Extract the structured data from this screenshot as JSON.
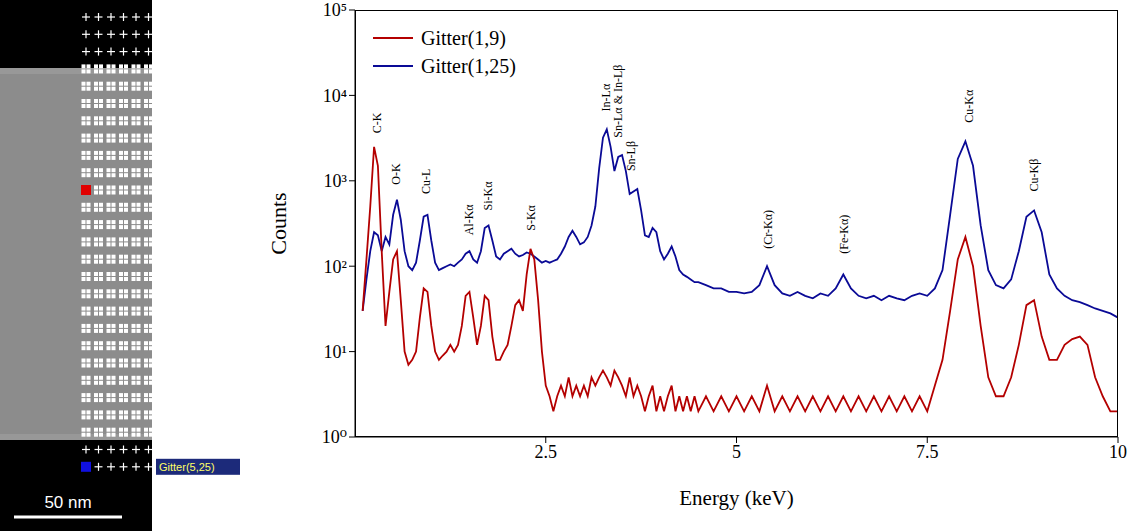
{
  "chart_data": {
    "type": "line",
    "xlabel": "Energy (keV)",
    "ylabel": "Counts",
    "log": "y",
    "grid": false,
    "legend": "upper left",
    "xlim": [
      0,
      10
    ],
    "xticks": [
      2.5,
      5,
      7.5,
      10
    ],
    "ylim": [
      1,
      100000
    ],
    "yticks": [
      {
        "value": 1,
        "label": "10⁰"
      },
      {
        "value": 10,
        "label": "10¹"
      },
      {
        "value": 100,
        "label": "10²"
      },
      {
        "value": 1000,
        "label": "10³"
      },
      {
        "value": 10000,
        "label": "10⁴"
      },
      {
        "value": 100000,
        "label": "10⁵"
      }
    ],
    "x": [
      0.1,
      0.15,
      0.2,
      0.25,
      0.3,
      0.35,
      0.4,
      0.45,
      0.5,
      0.55,
      0.6,
      0.65,
      0.7,
      0.75,
      0.8,
      0.85,
      0.9,
      0.95,
      1.0,
      1.05,
      1.1,
      1.15,
      1.2,
      1.25,
      1.3,
      1.35,
      1.4,
      1.45,
      1.5,
      1.55,
      1.6,
      1.65,
      1.7,
      1.75,
      1.8,
      1.85,
      1.9,
      1.95,
      2.0,
      2.05,
      2.1,
      2.15,
      2.2,
      2.25,
      2.3,
      2.35,
      2.4,
      2.45,
      2.5,
      2.55,
      2.6,
      2.65,
      2.7,
      2.75,
      2.8,
      2.85,
      2.9,
      2.95,
      3.0,
      3.05,
      3.1,
      3.15,
      3.2,
      3.25,
      3.3,
      3.35,
      3.4,
      3.45,
      3.5,
      3.55,
      3.6,
      3.65,
      3.7,
      3.75,
      3.8,
      3.85,
      3.9,
      3.95,
      4.0,
      4.05,
      4.1,
      4.15,
      4.2,
      4.25,
      4.3,
      4.35,
      4.4,
      4.45,
      4.5,
      4.6,
      4.7,
      4.8,
      4.9,
      5.0,
      5.1,
      5.2,
      5.3,
      5.4,
      5.5,
      5.6,
      5.7,
      5.8,
      5.9,
      6.0,
      6.1,
      6.2,
      6.3,
      6.4,
      6.5,
      6.6,
      6.7,
      6.8,
      6.9,
      7.0,
      7.1,
      7.2,
      7.3,
      7.4,
      7.5,
      7.6,
      7.7,
      7.8,
      7.9,
      8.0,
      8.1,
      8.2,
      8.3,
      8.4,
      8.5,
      8.6,
      8.7,
      8.8,
      8.9,
      9.0,
      9.1,
      9.2,
      9.3,
      9.4,
      9.5,
      9.6,
      9.7,
      9.8,
      9.9,
      10.0
    ],
    "series": [
      {
        "name": "Gitter(1,9)",
        "color": "#b40000",
        "values": [
          30,
          120,
          500,
          2500,
          1500,
          150,
          20,
          50,
          120,
          150,
          40,
          10,
          7,
          8,
          10,
          25,
          55,
          50,
          20,
          10,
          8,
          9,
          10,
          12,
          10,
          12,
          20,
          45,
          50,
          25,
          12,
          20,
          45,
          40,
          15,
          8,
          8,
          10,
          12,
          20,
          35,
          40,
          30,
          80,
          160,
          120,
          40,
          10,
          4,
          3,
          2,
          3,
          4,
          3,
          5,
          3,
          4,
          3,
          4,
          3,
          5,
          4,
          5,
          6,
          5,
          4,
          6,
          5,
          4,
          3,
          5,
          3,
          4,
          3,
          2,
          3,
          4,
          2,
          3,
          2,
          3,
          4,
          2,
          3,
          2,
          3,
          2,
          3,
          2,
          3,
          2,
          3,
          2,
          3,
          2,
          3,
          2,
          4,
          2,
          3,
          2,
          3,
          2,
          3,
          2,
          3,
          2,
          3,
          2,
          3,
          2,
          3,
          2,
          3,
          2,
          3,
          2,
          3,
          2,
          4,
          8,
          30,
          120,
          220,
          100,
          20,
          5,
          3,
          3,
          5,
          12,
          35,
          40,
          15,
          8,
          8,
          12,
          14,
          15,
          12,
          5,
          3,
          2,
          2
        ]
      },
      {
        "name": "Gitter(1,25)",
        "color": "#0a0a96",
        "values": [
          30,
          70,
          150,
          250,
          230,
          150,
          220,
          180,
          400,
          600,
          350,
          150,
          100,
          90,
          110,
          200,
          380,
          400,
          200,
          110,
          90,
          95,
          100,
          105,
          100,
          110,
          120,
          140,
          150,
          120,
          110,
          150,
          280,
          300,
          200,
          130,
          120,
          140,
          150,
          160,
          140,
          130,
          135,
          145,
          140,
          130,
          120,
          110,
          115,
          110,
          115,
          120,
          140,
          170,
          220,
          260,
          220,
          180,
          190,
          220,
          300,
          500,
          1400,
          3200,
          4000,
          2500,
          1300,
          1900,
          2000,
          1300,
          700,
          750,
          800,
          450,
          230,
          220,
          280,
          250,
          150,
          120,
          140,
          170,
          130,
          90,
          80,
          75,
          70,
          65,
          65,
          60,
          55,
          55,
          50,
          50,
          48,
          50,
          60,
          100,
          60,
          48,
          45,
          50,
          45,
          42,
          48,
          45,
          55,
          80,
          55,
          45,
          42,
          45,
          40,
          45,
          42,
          40,
          45,
          48,
          45,
          55,
          90,
          400,
          1800,
          2900,
          1500,
          300,
          90,
          60,
          55,
          70,
          150,
          380,
          450,
          250,
          80,
          55,
          45,
          40,
          38,
          35,
          32,
          30,
          28,
          25
        ]
      }
    ],
    "annotations": [
      {
        "text": "C-K",
        "x": 0.28,
        "y": 3600
      },
      {
        "text": "O-K",
        "x": 0.53,
        "y": 900
      },
      {
        "text": "Cu-L",
        "x": 0.93,
        "y": 700
      },
      {
        "text": "Al-Kα",
        "x": 1.49,
        "y": 230
      },
      {
        "text": "Si-Kα",
        "x": 1.74,
        "y": 450
      },
      {
        "text": "S-Kα",
        "x": 2.31,
        "y": 260
      },
      {
        "text": "In-Lα",
        "x": 3.29,
        "y": 6500
      },
      {
        "text": "Sn-Lα & In-Lβ",
        "x": 3.45,
        "y": 3200
      },
      {
        "text": "Sn-Lβ",
        "x": 3.62,
        "y": 1300
      },
      {
        "text": "(Cr-Kα)",
        "x": 5.41,
        "y": 160
      },
      {
        "text": "(Fe-Kα)",
        "x": 6.4,
        "y": 140
      },
      {
        "text": "Cu-Kα",
        "x": 8.04,
        "y": 4800
      },
      {
        "text": "Cu-Kβ",
        "x": 8.9,
        "y": 750
      }
    ]
  },
  "image_panel": {
    "marker_label": "Gitter(5,25)",
    "scale_bar": "50 nm"
  }
}
